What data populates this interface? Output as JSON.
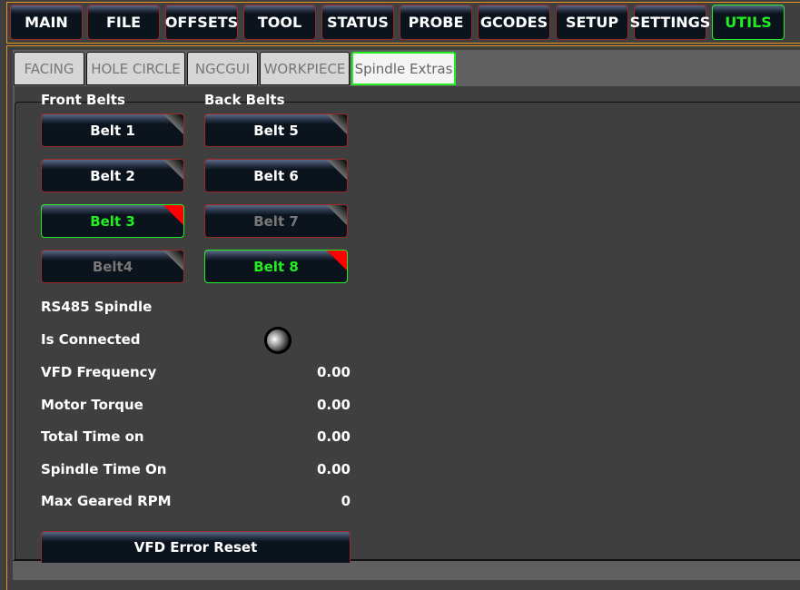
{
  "nav": [
    {
      "label": "MAIN"
    },
    {
      "label": "FILE"
    },
    {
      "label": "OFFSETS"
    },
    {
      "label": "TOOL"
    },
    {
      "label": "STATUS"
    },
    {
      "label": "PROBE"
    },
    {
      "label": "GCODES"
    },
    {
      "label": "SETUP"
    },
    {
      "label": "SETTINGS"
    },
    {
      "label": "UTILS",
      "active": true
    }
  ],
  "tabs": [
    {
      "label": "FACING"
    },
    {
      "label": "HOLE CIRCLE"
    },
    {
      "label": "NGCGUI"
    },
    {
      "label": "WORKPIECE"
    },
    {
      "label": "Spindle Extras",
      "active": true
    }
  ],
  "front_belts_label": "Front Belts",
  "back_belts_label": "Back Belts",
  "belts": [
    {
      "label": "Belt 1",
      "state": "normal"
    },
    {
      "label": "Belt 2",
      "state": "normal"
    },
    {
      "label": "Belt 3",
      "state": "selected"
    },
    {
      "label": "Belt4",
      "state": "disabled"
    },
    {
      "label": "Belt 5",
      "state": "normal"
    },
    {
      "label": "Belt 6",
      "state": "normal"
    },
    {
      "label": "Belt 7",
      "state": "disabled"
    },
    {
      "label": "Belt 8",
      "state": "selected"
    }
  ],
  "rs485": {
    "title": "RS485 Spindle",
    "connected_label": "Is Connected",
    "connected": false,
    "rows": [
      {
        "label": "VFD Frequency",
        "value": "0.00"
      },
      {
        "label": "Motor Torque",
        "value": "0.00"
      },
      {
        "label": "Total Time on",
        "value": "0.00"
      },
      {
        "label": "Spindle Time On",
        "value": "0.00"
      },
      {
        "label": "Max Geared RPM",
        "value": "0"
      }
    ]
  },
  "reset_label": "VFD Error Reset",
  "colors": {
    "accent": "#22ee22",
    "frame": "#e8941a",
    "button_border": "#9a2a2a"
  }
}
